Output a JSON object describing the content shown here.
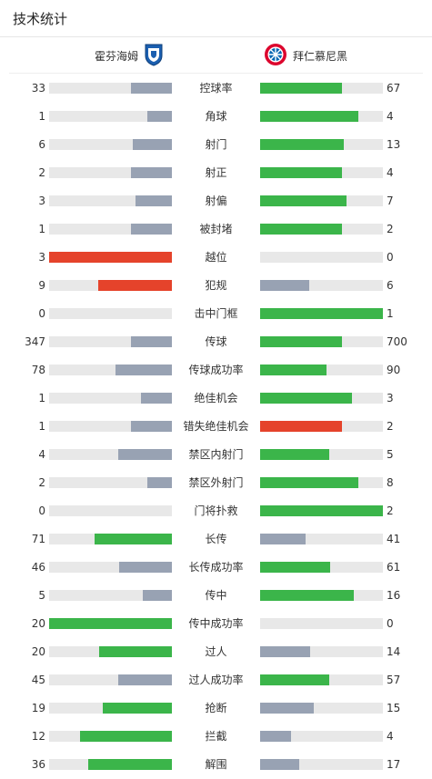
{
  "page": {
    "title": "技术统计"
  },
  "teams": {
    "home": "霍芬海姆",
    "away": "拜仁慕尼黑"
  },
  "colors": {
    "gray": "#98a2b3",
    "green": "#3bb54a",
    "red": "#e5432b",
    "track": "#e8e8e8"
  },
  "stats": [
    {
      "label": "控球率",
      "home": "33",
      "away": "67",
      "home_fill": 0.33,
      "away_fill": 0.67,
      "home_color": "gray",
      "away_color": "green"
    },
    {
      "label": "角球",
      "home": "1",
      "away": "4",
      "home_fill": 0.2,
      "away_fill": 0.8,
      "home_color": "gray",
      "away_color": "green"
    },
    {
      "label": "射门",
      "home": "6",
      "away": "13",
      "home_fill": 0.32,
      "away_fill": 0.68,
      "home_color": "gray",
      "away_color": "green"
    },
    {
      "label": "射正",
      "home": "2",
      "away": "4",
      "home_fill": 0.33,
      "away_fill": 0.67,
      "home_color": "gray",
      "away_color": "green"
    },
    {
      "label": "射偏",
      "home": "3",
      "away": "7",
      "home_fill": 0.3,
      "away_fill": 0.7,
      "home_color": "gray",
      "away_color": "green"
    },
    {
      "label": "被封堵",
      "home": "1",
      "away": "2",
      "home_fill": 0.33,
      "away_fill": 0.67,
      "home_color": "gray",
      "away_color": "green"
    },
    {
      "label": "越位",
      "home": "3",
      "away": "0",
      "home_fill": 1.0,
      "away_fill": 0.0,
      "home_color": "red",
      "away_color": "gray"
    },
    {
      "label": "犯规",
      "home": "9",
      "away": "6",
      "home_fill": 0.6,
      "away_fill": 0.4,
      "home_color": "red",
      "away_color": "gray"
    },
    {
      "label": "击中门框",
      "home": "0",
      "away": "1",
      "home_fill": 0.0,
      "away_fill": 1.0,
      "home_color": "gray",
      "away_color": "green"
    },
    {
      "label": "传球",
      "home": "347",
      "away": "700",
      "home_fill": 0.33,
      "away_fill": 0.67,
      "home_color": "gray",
      "away_color": "green"
    },
    {
      "label": "传球成功率",
      "home": "78",
      "away": "90",
      "home_fill": 0.46,
      "away_fill": 0.54,
      "home_color": "gray",
      "away_color": "green"
    },
    {
      "label": "绝佳机会",
      "home": "1",
      "away": "3",
      "home_fill": 0.25,
      "away_fill": 0.75,
      "home_color": "gray",
      "away_color": "green"
    },
    {
      "label": "错失绝佳机会",
      "home": "1",
      "away": "2",
      "home_fill": 0.33,
      "away_fill": 0.67,
      "home_color": "gray",
      "away_color": "red"
    },
    {
      "label": "禁区内射门",
      "home": "4",
      "away": "5",
      "home_fill": 0.44,
      "away_fill": 0.56,
      "home_color": "gray",
      "away_color": "green"
    },
    {
      "label": "禁区外射门",
      "home": "2",
      "away": "8",
      "home_fill": 0.2,
      "away_fill": 0.8,
      "home_color": "gray",
      "away_color": "green"
    },
    {
      "label": "门将扑救",
      "home": "0",
      "away": "2",
      "home_fill": 0.0,
      "away_fill": 1.0,
      "home_color": "gray",
      "away_color": "green"
    },
    {
      "label": "长传",
      "home": "71",
      "away": "41",
      "home_fill": 0.63,
      "away_fill": 0.37,
      "home_color": "green",
      "away_color": "gray"
    },
    {
      "label": "长传成功率",
      "home": "46",
      "away": "61",
      "home_fill": 0.43,
      "away_fill": 0.57,
      "home_color": "gray",
      "away_color": "green"
    },
    {
      "label": "传中",
      "home": "5",
      "away": "16",
      "home_fill": 0.24,
      "away_fill": 0.76,
      "home_color": "gray",
      "away_color": "green"
    },
    {
      "label": "传中成功率",
      "home": "20",
      "away": "0",
      "home_fill": 1.0,
      "away_fill": 0.0,
      "home_color": "green",
      "away_color": "gray"
    },
    {
      "label": "过人",
      "home": "20",
      "away": "14",
      "home_fill": 0.59,
      "away_fill": 0.41,
      "home_color": "green",
      "away_color": "gray"
    },
    {
      "label": "过人成功率",
      "home": "45",
      "away": "57",
      "home_fill": 0.44,
      "away_fill": 0.56,
      "home_color": "gray",
      "away_color": "green"
    },
    {
      "label": "抢断",
      "home": "19",
      "away": "15",
      "home_fill": 0.56,
      "away_fill": 0.44,
      "home_color": "green",
      "away_color": "gray"
    },
    {
      "label": "拦截",
      "home": "12",
      "away": "4",
      "home_fill": 0.75,
      "away_fill": 0.25,
      "home_color": "green",
      "away_color": "gray"
    },
    {
      "label": "解围",
      "home": "36",
      "away": "17",
      "home_fill": 0.68,
      "away_fill": 0.32,
      "home_color": "green",
      "away_color": "gray"
    }
  ]
}
